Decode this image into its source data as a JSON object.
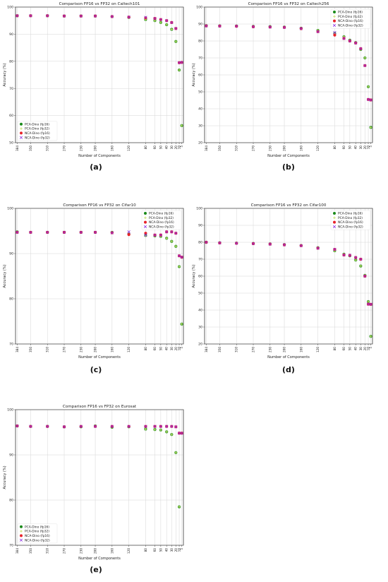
{
  "series_styles": [
    {
      "name": "PCA-Dino (fp16)",
      "marker": "circle",
      "color": "#1a8a1a"
    },
    {
      "name": "PCA-Dino (fp32)",
      "marker": "plus",
      "color": "#c8e06a"
    },
    {
      "name": "NCA-Dino (fp16)",
      "marker": "circle",
      "color": "#e8222a"
    },
    {
      "name": "NCA-Dino (fp32)",
      "marker": "x",
      "color": "#8a2be2"
    }
  ],
  "panel_labels": [
    "(a)",
    "(b)",
    "(c)",
    "(d)",
    "(e)"
  ],
  "chart_data": [
    {
      "type": "scatter",
      "title": "Comparison FP16 vs FP32 on Caltech101",
      "xlabel": "Number of Components",
      "ylabel": "Accuracy (%)",
      "categories": [
        "384",
        "350",
        "310",
        "270",
        "230",
        "200",
        "160",
        "120",
        "80",
        "60",
        "50",
        "40",
        "30",
        "20",
        "10",
        "5"
      ],
      "ylim": [
        50,
        100
      ],
      "yticks": [
        50,
        60,
        70,
        80,
        90,
        100
      ],
      "grid": true,
      "legend_position": "lower-left",
      "series": [
        {
          "name": "PCA-Dino (fp16)",
          "values": [
            96.8,
            96.8,
            96.8,
            96.7,
            96.7,
            96.7,
            96.5,
            96.2,
            95.4,
            95.0,
            94.3,
            93.5,
            91.8,
            87.3,
            76.8,
            56.3
          ]
        },
        {
          "name": "PCA-Dino (fp32)",
          "values": [
            96.8,
            96.8,
            96.8,
            96.7,
            96.7,
            96.7,
            96.5,
            96.2,
            95.4,
            95.0,
            94.3,
            93.5,
            91.8,
            87.3,
            76.8,
            56.3
          ]
        },
        {
          "name": "NCA-Dino (fp16)",
          "values": [
            96.8,
            96.8,
            96.8,
            96.7,
            96.7,
            96.7,
            96.5,
            96.3,
            96.0,
            95.8,
            95.4,
            95.0,
            94.3,
            92.1,
            79.5,
            79.6
          ]
        },
        {
          "name": "NCA-Dino (fp32)",
          "values": [
            96.8,
            96.8,
            96.8,
            96.7,
            96.7,
            96.7,
            96.5,
            96.3,
            96.2,
            95.8,
            95.4,
            95.0,
            94.3,
            92.1,
            79.5,
            79.6
          ]
        }
      ]
    },
    {
      "type": "scatter",
      "title": "Comparison FP16 vs FP32 on Caltech256",
      "xlabel": "Number of Components",
      "ylabel": "Accuracy (%)",
      "categories": [
        "384",
        "350",
        "310",
        "270",
        "230",
        "200",
        "160",
        "120",
        "80",
        "60",
        "50",
        "40",
        "30",
        "20",
        "10",
        "5"
      ],
      "ylim": [
        20,
        100
      ],
      "yticks": [
        20,
        30,
        40,
        50,
        60,
        70,
        80,
        90,
        100
      ],
      "grid": true,
      "legend_position": "upper-right",
      "series": [
        {
          "name": "PCA-Dino (fp16)",
          "values": [
            89.0,
            88.9,
            88.8,
            88.6,
            88.5,
            88.2,
            87.5,
            86.2,
            84.5,
            82.5,
            80.5,
            79.0,
            75.0,
            70.0,
            53.0,
            29.0
          ]
        },
        {
          "name": "PCA-Dino (fp32)",
          "values": [
            89.0,
            88.9,
            88.8,
            88.6,
            88.5,
            88.2,
            87.5,
            86.2,
            84.5,
            82.5,
            80.5,
            79.0,
            75.0,
            70.0,
            53.0,
            29.0
          ]
        },
        {
          "name": "NCA-Dino (fp16)",
          "values": [
            88.9,
            88.8,
            88.7,
            88.4,
            88.2,
            88.0,
            87.3,
            85.5,
            83.5,
            81.5,
            80.0,
            78.8,
            75.5,
            65.5,
            45.5,
            45.2
          ]
        },
        {
          "name": "NCA-Dino (fp32)",
          "values": [
            88.9,
            88.8,
            88.7,
            88.4,
            88.2,
            88.0,
            87.3,
            85.5,
            85.0,
            81.5,
            80.0,
            78.8,
            75.5,
            65.5,
            45.5,
            45.2
          ]
        }
      ]
    },
    {
      "type": "scatter",
      "title": "Comparison FP16 vs FP32 on Cifar10",
      "xlabel": "Number of Components",
      "ylabel": "Accuracy (%)",
      "categories": [
        "384",
        "350",
        "310",
        "270",
        "230",
        "200",
        "160",
        "120",
        "80",
        "60",
        "50",
        "40",
        "30",
        "20",
        "10",
        "5"
      ],
      "ylim": [
        70,
        100
      ],
      "yticks": [
        70,
        80,
        90,
        100
      ],
      "grid": true,
      "legend_position": "upper-right",
      "series": [
        {
          "name": "PCA-Dino (fp16)",
          "values": [
            94.8,
            94.7,
            94.7,
            94.7,
            94.7,
            94.7,
            94.7,
            94.3,
            94.0,
            93.9,
            93.8,
            93.4,
            92.7,
            91.6,
            87.1,
            74.4
          ]
        },
        {
          "name": "PCA-Dino (fp32)",
          "values": [
            94.8,
            94.7,
            94.7,
            94.7,
            94.7,
            94.7,
            94.7,
            94.3,
            94.0,
            93.9,
            93.8,
            93.4,
            92.7,
            91.6,
            87.1,
            74.4
          ]
        },
        {
          "name": "NCA-Dino (fp16)",
          "values": [
            94.7,
            94.7,
            94.7,
            94.7,
            94.7,
            94.7,
            94.6,
            94.2,
            94.5,
            94.1,
            94.1,
            94.8,
            94.8,
            94.5,
            89.5,
            89.2
          ]
        },
        {
          "name": "NCA-Dino (fp32)",
          "values": [
            94.7,
            94.7,
            94.7,
            94.7,
            94.7,
            94.7,
            94.6,
            94.8,
            94.1,
            94.1,
            94.1,
            94.8,
            94.8,
            94.5,
            89.5,
            89.2
          ]
        }
      ]
    },
    {
      "type": "scatter",
      "title": "Comparison FP16 vs FP32 on Cifar100",
      "xlabel": "Number of Components",
      "ylabel": "Accuracy (%)",
      "categories": [
        "384",
        "350",
        "310",
        "270",
        "230",
        "200",
        "160",
        "120",
        "80",
        "60",
        "50",
        "40",
        "30",
        "20",
        "10",
        "5"
      ],
      "ylim": [
        20,
        100
      ],
      "yticks": [
        20,
        30,
        40,
        50,
        60,
        70,
        80,
        90,
        100
      ],
      "grid": true,
      "legend_position": "upper-right",
      "series": [
        {
          "name": "PCA-Dino (fp16)",
          "values": [
            80.0,
            79.7,
            79.5,
            79.3,
            79.0,
            78.6,
            78.1,
            76.8,
            75.0,
            73.0,
            72.0,
            69.5,
            66.0,
            60.5,
            45.0,
            24.5
          ]
        },
        {
          "name": "PCA-Dino (fp32)",
          "values": [
            80.0,
            79.7,
            79.5,
            79.3,
            79.0,
            78.6,
            78.1,
            76.8,
            75.0,
            73.0,
            72.0,
            69.5,
            66.0,
            60.5,
            45.0,
            24.5
          ]
        },
        {
          "name": "NCA-Dino (fp16)",
          "values": [
            80.0,
            79.6,
            79.4,
            79.2,
            78.9,
            78.5,
            78.0,
            76.5,
            75.8,
            72.5,
            72.3,
            71.0,
            70.0,
            60.0,
            43.5,
            43.4
          ]
        },
        {
          "name": "NCA-Dino (fp32)",
          "values": [
            80.0,
            79.6,
            79.4,
            79.2,
            78.9,
            78.5,
            78.0,
            76.5,
            75.8,
            72.5,
            72.3,
            71.0,
            70.0,
            60.0,
            43.5,
            43.4
          ]
        }
      ]
    },
    {
      "type": "scatter",
      "title": "Comparison FP16 vs FP32 on Eurosat",
      "xlabel": "Number of Components",
      "ylabel": "Accuracy (%)",
      "categories": [
        "384",
        "350",
        "310",
        "270",
        "230",
        "200",
        "160",
        "120",
        "80",
        "60",
        "50",
        "40",
        "30",
        "20",
        "10",
        "5"
      ],
      "ylim": [
        70,
        100
      ],
      "yticks": [
        70,
        80,
        90,
        100
      ],
      "grid": true,
      "legend_position": "lower-left",
      "series": [
        {
          "name": "PCA-Dino (fp16)",
          "values": [
            96.4,
            96.3,
            96.3,
            96.2,
            96.2,
            96.4,
            96.1,
            96.2,
            95.7,
            95.6,
            95.5,
            95.1,
            94.5,
            90.5,
            78.5,
            null
          ]
        },
        {
          "name": "PCA-Dino (fp32)",
          "values": [
            96.4,
            96.3,
            96.3,
            96.2,
            96.2,
            96.4,
            96.1,
            96.2,
            95.7,
            95.6,
            95.5,
            95.1,
            94.5,
            90.5,
            78.5,
            null
          ]
        },
        {
          "name": "NCA-Dino (fp16)",
          "values": [
            96.4,
            96.3,
            96.3,
            96.2,
            96.3,
            96.3,
            96.3,
            96.3,
            96.3,
            96.3,
            96.3,
            96.3,
            96.3,
            96.2,
            94.8,
            94.8
          ]
        },
        {
          "name": "NCA-Dino (fp32)",
          "values": [
            96.4,
            96.3,
            96.3,
            96.2,
            96.3,
            96.3,
            96.3,
            96.3,
            96.3,
            96.3,
            96.3,
            96.3,
            96.3,
            96.2,
            94.8,
            94.8
          ]
        }
      ]
    }
  ]
}
